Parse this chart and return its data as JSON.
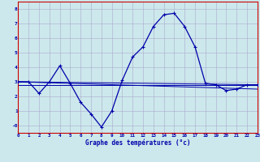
{
  "background_color": "#cce8ec",
  "plot_bg_color": "#cce8ec",
  "grid_color": "#aaaacc",
  "line_color": "#0000aa",
  "xlim": [
    0,
    23
  ],
  "ylim": [
    -0.5,
    8.5
  ],
  "yticks": [
    0,
    1,
    2,
    3,
    4,
    5,
    6,
    7,
    8
  ],
  "ytick_labels": [
    "-0",
    "1",
    "2",
    "3",
    "4",
    "5",
    "6",
    "7",
    "8"
  ],
  "xticks": [
    0,
    1,
    2,
    3,
    4,
    5,
    6,
    7,
    8,
    9,
    10,
    11,
    12,
    13,
    14,
    15,
    16,
    17,
    18,
    19,
    20,
    21,
    22,
    23
  ],
  "line1_x": [
    0,
    1,
    2,
    3,
    4,
    5,
    6,
    7,
    8,
    9,
    10,
    11,
    12,
    13,
    14,
    15,
    16,
    17,
    18,
    19,
    20,
    21,
    22,
    23
  ],
  "line1_y": [
    3.0,
    3.0,
    2.2,
    3.0,
    4.1,
    2.9,
    1.6,
    0.8,
    -0.1,
    1.0,
    3.1,
    4.7,
    5.4,
    6.8,
    7.6,
    7.7,
    6.8,
    5.4,
    2.9,
    2.8,
    2.4,
    2.5,
    2.8,
    2.8
  ],
  "line2_x": [
    0,
    23
  ],
  "line2_y": [
    3.0,
    2.8
  ],
  "line3_x": [
    0,
    23
  ],
  "line3_y": [
    3.0,
    2.5
  ],
  "line4_x": [
    0,
    23
  ],
  "line4_y": [
    2.8,
    2.8
  ],
  "xlabel": "Graphe des températures (°c)",
  "xlabel_color": "#0000aa",
  "tick_color": "#0000aa",
  "axis_color": "#0000aa",
  "spine_color": "#cc0000"
}
